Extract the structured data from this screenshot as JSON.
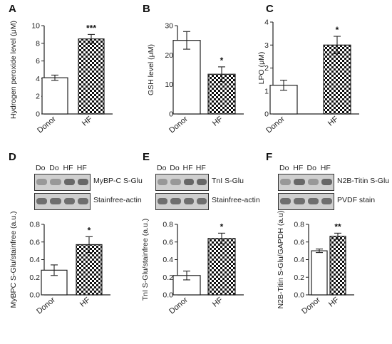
{
  "panels": [
    {
      "letter": "A",
      "ylabel": "Hydrogen peroxide level (μM)",
      "ticks": [
        "0",
        "2",
        "4",
        "6",
        "8",
        "10"
      ],
      "categories": [
        "Donor",
        "HF"
      ],
      "sig": "***"
    },
    {
      "letter": "B",
      "ylabel": "GSH level (μM)",
      "ticks": [
        "0",
        "10",
        "20",
        "30"
      ],
      "categories": [
        "Donor",
        "HF"
      ],
      "sig": "*"
    },
    {
      "letter": "C",
      "ylabel": "LPO (μM)",
      "ticks": [
        "0",
        "1",
        "2",
        "3",
        "4"
      ],
      "categories": [
        "Donor",
        "HF"
      ],
      "sig": "*"
    },
    {
      "letter": "D",
      "ylabel": "MyBPC S-Glu/stainfree (a.u.)",
      "ticks": [
        "0.0",
        "0.2",
        "0.4",
        "0.6",
        "0.8"
      ],
      "categories": [
        "Donor",
        "HF"
      ],
      "sig": "*"
    },
    {
      "letter": "E",
      "ylabel": "TnI S-Glu/stainfree (a.u.)",
      "ticks": [
        "0.0",
        "0.2",
        "0.4",
        "0.6",
        "0.8"
      ],
      "categories": [
        "Donor",
        "HF"
      ],
      "sig": "*"
    },
    {
      "letter": "F",
      "ylabel": "N2B-Titin S-Glu/GAPDH (a.u)",
      "ticks": [
        "0.0",
        "0.2",
        "0.4",
        "0.6",
        "0.8"
      ],
      "categories": [
        "Donor",
        "HF"
      ],
      "sig": "**"
    }
  ],
  "blots": [
    {
      "letter": "D",
      "lanes": [
        "Do",
        "Do",
        "HF",
        "HF"
      ],
      "row1": "MyBP-C  S-Glu",
      "row2": "Stainfree-actin"
    },
    {
      "letter": "E",
      "lanes": [
        "Do",
        "Do",
        "HF",
        "HF"
      ],
      "row1": "TnI S-Glu",
      "row2": "Stainfree-actin"
    },
    {
      "letter": "F",
      "lanes": [
        "Do",
        "HF",
        "Do",
        "HF"
      ],
      "row1": "N2B-Titin  S-Glu",
      "row2": "PVDF  stain"
    }
  ],
  "chart_data": [
    {
      "type": "bar",
      "title": "",
      "xlabel": "",
      "ylabel": "Hydrogen peroxide level (μM)",
      "categories": [
        "Donor",
        "HF"
      ],
      "values": [
        4.1,
        8.5
      ],
      "errors": [
        0.3,
        0.5
      ],
      "ylim": [
        0,
        10
      ],
      "significance": "***"
    },
    {
      "type": "bar",
      "title": "",
      "xlabel": "",
      "ylabel": "GSH level (μM)",
      "categories": [
        "Donor",
        "HF"
      ],
      "values": [
        25,
        13.5
      ],
      "errors": [
        3,
        2.5
      ],
      "ylim": [
        0,
        30
      ],
      "significance": "*"
    },
    {
      "type": "bar",
      "title": "",
      "xlabel": "",
      "ylabel": "LPO (μM)",
      "categories": [
        "Donor",
        "HF"
      ],
      "values": [
        1.25,
        3.0
      ],
      "errors": [
        0.22,
        0.38
      ],
      "ylim": [
        0,
        4
      ],
      "significance": "*"
    },
    {
      "type": "bar",
      "title": "",
      "xlabel": "",
      "ylabel": "MyBPC S-Glu/stainfree (a.u.)",
      "categories": [
        "Donor",
        "HF"
      ],
      "values": [
        0.28,
        0.57
      ],
      "errors": [
        0.06,
        0.09
      ],
      "ylim": [
        0,
        0.8
      ],
      "significance": "*"
    },
    {
      "type": "bar",
      "title": "",
      "xlabel": "",
      "ylabel": "TnI S-Glu/stainfree (a.u.)",
      "categories": [
        "Donor",
        "HF"
      ],
      "values": [
        0.22,
        0.64
      ],
      "errors": [
        0.05,
        0.06
      ],
      "ylim": [
        0,
        0.8
      ],
      "significance": "*"
    },
    {
      "type": "bar",
      "title": "",
      "xlabel": "",
      "ylabel": "N2B-Titin S-Glu/GAPDH (a.u)",
      "categories": [
        "Donor",
        "HF"
      ],
      "values": [
        0.5,
        0.665
      ],
      "errors": [
        0.02,
        0.035
      ],
      "ylim": [
        0,
        0.8
      ],
      "significance": "**"
    }
  ]
}
